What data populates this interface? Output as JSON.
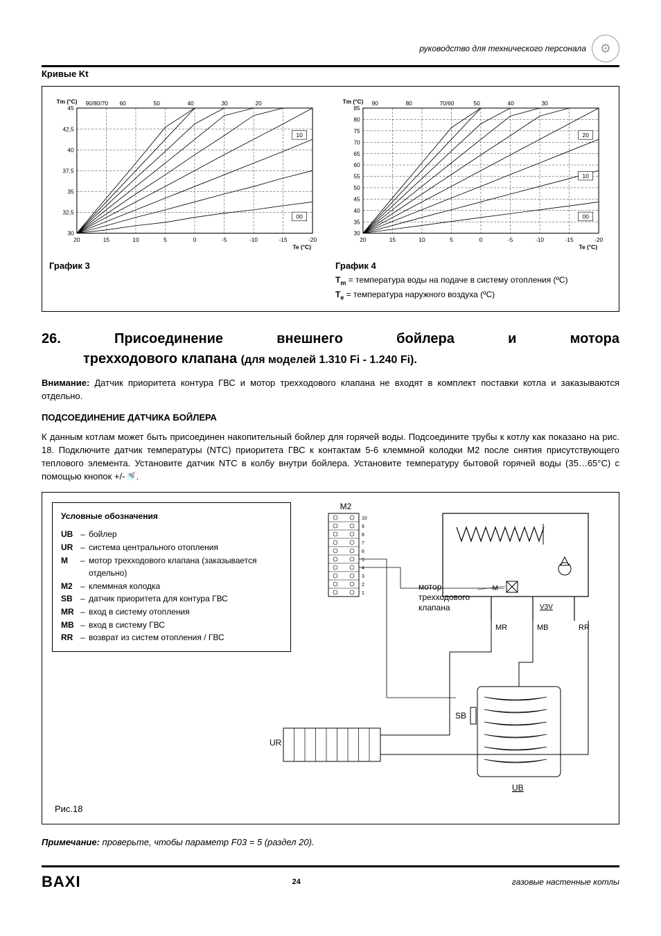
{
  "header": {
    "guide_text": "руководство для технического персонала"
  },
  "curves_title": "Кривые Kt",
  "chart_left": {
    "caption": "График 3",
    "y_title": "Tm (°C)",
    "x_title": "Te (°C)",
    "ylim": [
      30,
      45
    ],
    "ytick_step": 2.5,
    "xlim": [
      20,
      -20
    ],
    "xtick_step": 5,
    "y_ticks": [
      "45",
      "42,5",
      "40",
      "37,5",
      "35",
      "32,5",
      "30"
    ],
    "x_ticks": [
      "20",
      "15",
      "10",
      "5",
      "0",
      "-5",
      "-10",
      "-15",
      "-20"
    ],
    "top_labels": [
      "90/80/70",
      "60",
      "50",
      "40",
      "30",
      "20"
    ],
    "box_right": [
      "10",
      "00"
    ],
    "grid_color": "#000",
    "line_color": "#000",
    "bg": "#ffffff",
    "line_width": 0.8,
    "curves_x": [
      20,
      15,
      10,
      5,
      0,
      -5,
      -10,
      -15,
      -20
    ],
    "curves": {
      "c10": [
        30,
        30.4,
        30.9,
        31.3,
        31.9,
        32.4,
        32.8,
        33.3,
        33.75
      ],
      "c20": [
        30,
        30.9,
        31.9,
        32.8,
        33.75,
        34.7,
        35.6,
        36.6,
        37.5
      ],
      "c30": [
        30,
        31.4,
        32.8,
        34.2,
        35.6,
        37.0,
        38.4,
        39.8,
        41.25
      ],
      "c40": [
        30,
        31.9,
        33.75,
        35.6,
        37.5,
        39.4,
        41.25,
        43.1,
        45
      ],
      "c50": [
        30,
        32.3,
        34.7,
        37.0,
        39.4,
        41.7,
        44.1,
        45,
        45
      ],
      "c60": [
        30,
        32.8,
        35.6,
        38.4,
        41.25,
        44.1,
        45,
        45,
        45
      ],
      "c70": [
        30,
        33.3,
        36.6,
        39.8,
        43.1,
        45,
        45,
        45,
        45
      ],
      "c80": [
        30,
        33.75,
        37.5,
        41.25,
        45,
        45,
        45,
        45,
        45
      ],
      "c90": [
        30,
        34.2,
        38.4,
        42.7,
        45,
        45,
        45,
        45,
        45
      ]
    }
  },
  "chart_right": {
    "caption": "График 4",
    "notes_tm_prefix": "T",
    "notes_tm_sub": "m",
    "notes_tm_text": " = температура воды на подаче в систему отопления (ºС)",
    "notes_te_prefix": "T",
    "notes_te_sub": "e",
    "notes_te_text": " = температура наружного воздуха (ºС)",
    "y_title": "Tm (°C)",
    "x_title": "Te (°C)",
    "ylim": [
      30,
      85
    ],
    "ytick_step": 5,
    "xlim": [
      20,
      -20
    ],
    "xtick_step": 5,
    "y_ticks": [
      "85",
      "80",
      "75",
      "70",
      "65",
      "60",
      "55",
      "50",
      "45",
      "40",
      "35",
      "30"
    ],
    "x_ticks": [
      "20",
      "15",
      "10",
      "5",
      "0",
      "-5",
      "-10",
      "-15",
      "-20"
    ],
    "top_labels": [
      "90",
      "80",
      "70/60",
      "50",
      "40",
      "30"
    ],
    "box_right": [
      "20",
      "10",
      "00"
    ],
    "grid_color": "#000",
    "line_color": "#000",
    "bg": "#ffffff",
    "line_width": 0.8,
    "curves_x": [
      20,
      15,
      10,
      5,
      0,
      -5,
      -10,
      -15,
      -20
    ],
    "curves": {
      "c10": [
        30,
        31.7,
        33.4,
        35.2,
        36.9,
        38.6,
        40.3,
        42,
        43.75
      ],
      "c20": [
        30,
        33.4,
        36.9,
        40.3,
        43.75,
        47.2,
        50.6,
        54,
        57.5
      ],
      "c30": [
        30,
        35.2,
        40.3,
        45.5,
        50.6,
        55.8,
        60.9,
        66.1,
        71.25
      ],
      "c40": [
        30,
        36.9,
        43.75,
        50.6,
        57.5,
        64.4,
        71.25,
        78.1,
        85
      ],
      "c50": [
        30,
        38.6,
        47.2,
        55.8,
        64.4,
        72.9,
        81.5,
        85,
        85
      ],
      "c60": [
        30,
        40.3,
        50.6,
        60.9,
        71.25,
        81.5,
        85,
        85,
        85
      ],
      "c70": [
        30,
        42,
        54,
        66.1,
        78.1,
        85,
        85,
        85,
        85
      ],
      "c80": [
        30,
        43.75,
        57.5,
        71.25,
        85,
        85,
        85,
        85,
        85
      ],
      "c90": [
        30,
        45.5,
        60.9,
        76.4,
        85,
        85,
        85,
        85,
        85
      ]
    }
  },
  "section": {
    "num": "26.",
    "w1": "Присоединение",
    "w2": "внешнего",
    "w3": "бойлера",
    "w4": "и",
    "w5": "мотора",
    "line2": "трехходового клапана",
    "sub": "(для моделей 1.310 Fi - 1.240 Fi)."
  },
  "attention_label": "Внимание:",
  "attention_text": " Датчик приоритета контура ГВС и мотор трехходового клапана не входят в комплект поставки котла и заказываются отдельно.",
  "subhead": "ПОДСОЕДИНЕНИЕ ДАТЧИКА БОЙЛЕРА",
  "main_para": "К данным котлам может быть присоединен накопительный бойлер для горячей воды. Подсоедините трубы к котлу как показано на рис. 18. Подключите датчик температуры (NTC) приоритета ГВС к контактам 5-6 клеммной колодки М2 после снятия присутствующего теплового элемента. Установите датчик NTC в колбу внутри бойлера. Установите температуру бытовой горячей воды (35…65°С) с помощью кнопок +/-🚿.",
  "legend": {
    "title": "Условные обозначения",
    "items": [
      {
        "k": "UB",
        "t": "бойлер"
      },
      {
        "k": "UR",
        "t": "система центрального отопления"
      },
      {
        "k": "M",
        "t": "мотор трехходового клапана (заказывается отдельно)"
      },
      {
        "k": "M2",
        "t": "клеммная колодка"
      },
      {
        "k": "SB",
        "t": "датчик приоритета для контура ГВС"
      },
      {
        "k": "MR",
        "t": "вход в систему отопления"
      },
      {
        "k": "MB",
        "t": "вход в систему ГВС"
      },
      {
        "k": "RR",
        "t": "возврат из систем отопления / ГВС"
      }
    ]
  },
  "schematic": {
    "m2": "M2",
    "motor_line1": "мотор",
    "motor_line2": "трехходового",
    "motor_line3": "клапана",
    "M": "M",
    "V3V": "V3V",
    "MR": "MR",
    "MB": "MB",
    "RR": "RR",
    "SB": "SB",
    "UR": "UR",
    "UB": "UB",
    "terminals": [
      "10",
      "9",
      "8",
      "7",
      "6",
      "5",
      "4",
      "3",
      "2",
      "1"
    ]
  },
  "figlabel": "Рис.18",
  "note_label": "Примечание:",
  "note_text": " проверьте, чтобы параметр F03 = 5 (раздел 20).",
  "footer": {
    "logo": "BAXI",
    "page": "24",
    "right": "газовые настенные котлы"
  }
}
